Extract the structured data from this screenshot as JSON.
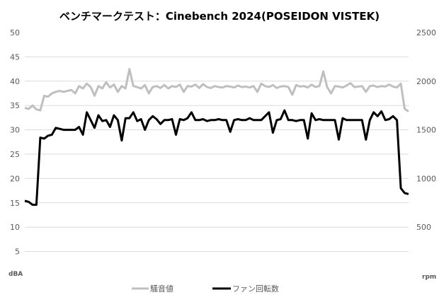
{
  "chart_data": {
    "type": "line",
    "title": "ベンチマークテスト：Cinebench 2024(POSEIDON VISTEK)",
    "ylabel": "dBA",
    "y2label": "rpm",
    "ylim": [
      0,
      50
    ],
    "y2lim": [
      0,
      2500
    ],
    "yticks": [
      "5",
      "10",
      "15",
      "20",
      "25",
      "30",
      "35",
      "40",
      "45",
      "50"
    ],
    "y2ticks": [
      "500",
      "1000",
      "1500",
      "2000",
      "2500"
    ],
    "grid": true,
    "legend": "bottom",
    "series": [
      {
        "name": "騒音値",
        "axis": "left",
        "color": "#bfbfbf",
        "values": [
          34.5,
          34.3,
          35,
          34.2,
          34,
          37,
          36.8,
          37.5,
          37.8,
          38,
          37.8,
          38,
          38.2,
          37.5,
          39,
          38.5,
          39.5,
          38.8,
          37,
          39,
          38.5,
          39.8,
          38.7,
          39.3,
          37.8,
          39,
          38.5,
          42.5,
          39,
          38.8,
          38.5,
          39.2,
          37.5,
          38.8,
          39,
          38.6,
          39.2,
          38.5,
          39,
          38.8,
          39.3,
          37.8,
          39,
          38.9,
          39.3,
          38.6,
          39.4,
          38.8,
          38.6,
          39,
          38.8,
          38.7,
          39,
          38.9,
          38.7,
          39.1,
          38.8,
          38.9,
          38.7,
          39,
          37.8,
          39.5,
          39,
          38.8,
          39.2,
          38.6,
          38.9,
          39,
          38.8,
          37.2,
          39.2,
          38.9,
          39,
          38.7,
          39.3,
          38.8,
          39,
          42,
          38.8,
          37.5,
          39,
          38.9,
          38.7,
          39.1,
          39.6,
          38.8,
          38.9,
          39,
          37.8,
          39,
          39.1,
          38.8,
          39,
          38.9,
          39.3,
          38.9,
          38.7,
          39.5,
          34.3,
          33.8
        ]
      },
      {
        "name": "ファン回転数",
        "axis": "right",
        "color": "#000000",
        "values": [
          770,
          760,
          730,
          730,
          1420,
          1410,
          1440,
          1450,
          1520,
          1510,
          1500,
          1500,
          1500,
          1500,
          1530,
          1450,
          1680,
          1600,
          1520,
          1650,
          1590,
          1600,
          1530,
          1650,
          1600,
          1390,
          1620,
          1620,
          1680,
          1590,
          1610,
          1500,
          1600,
          1640,
          1610,
          1560,
          1600,
          1600,
          1610,
          1450,
          1610,
          1600,
          1620,
          1680,
          1600,
          1600,
          1610,
          1590,
          1600,
          1600,
          1610,
          1600,
          1600,
          1480,
          1600,
          1610,
          1600,
          1600,
          1620,
          1600,
          1600,
          1600,
          1640,
          1680,
          1470,
          1600,
          1610,
          1700,
          1600,
          1600,
          1590,
          1600,
          1600,
          1410,
          1670,
          1600,
          1610,
          1600,
          1600,
          1600,
          1600,
          1400,
          1620,
          1600,
          1600,
          1600,
          1600,
          1600,
          1400,
          1600,
          1680,
          1640,
          1690,
          1600,
          1610,
          1640,
          1600,
          900,
          850,
          840
        ]
      }
    ]
  }
}
